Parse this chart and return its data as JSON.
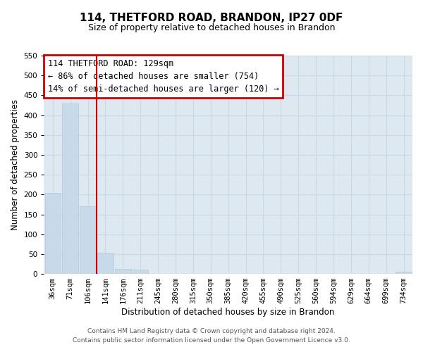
{
  "title": "114, THETFORD ROAD, BRANDON, IP27 0DF",
  "subtitle": "Size of property relative to detached houses in Brandon",
  "xlabel": "Distribution of detached houses by size in Brandon",
  "ylabel": "Number of detached properties",
  "bar_color": "#c8daea",
  "bar_edge_color": "#aec8dc",
  "grid_color": "#c8daea",
  "background_color": "#dde8f0",
  "bins": [
    "36sqm",
    "71sqm",
    "106sqm",
    "141sqm",
    "176sqm",
    "211sqm",
    "245sqm",
    "280sqm",
    "315sqm",
    "350sqm",
    "385sqm",
    "420sqm",
    "455sqm",
    "490sqm",
    "525sqm",
    "560sqm",
    "594sqm",
    "629sqm",
    "664sqm",
    "699sqm",
    "734sqm"
  ],
  "values": [
    205,
    430,
    170,
    53,
    13,
    10,
    0,
    0,
    0,
    0,
    0,
    0,
    0,
    0,
    0,
    0,
    0,
    0,
    0,
    0,
    5
  ],
  "ylim": [
    0,
    550
  ],
  "yticks": [
    0,
    50,
    100,
    150,
    200,
    250,
    300,
    350,
    400,
    450,
    500,
    550
  ],
  "vline_color": "#cc0000",
  "annotation_box_color": "#cc0000",
  "annotation_text_line1": "114 THETFORD ROAD: 129sqm",
  "annotation_text_line2": "← 86% of detached houses are smaller (754)",
  "annotation_text_line3": "14% of semi-detached houses are larger (120) →",
  "footer_line1": "Contains HM Land Registry data © Crown copyright and database right 2024.",
  "footer_line2": "Contains public sector information licensed under the Open Government Licence v3.0.",
  "title_fontsize": 11,
  "subtitle_fontsize": 9,
  "label_fontsize": 8.5,
  "tick_fontsize": 7.5,
  "annotation_fontsize": 8.5,
  "footer_fontsize": 6.5
}
